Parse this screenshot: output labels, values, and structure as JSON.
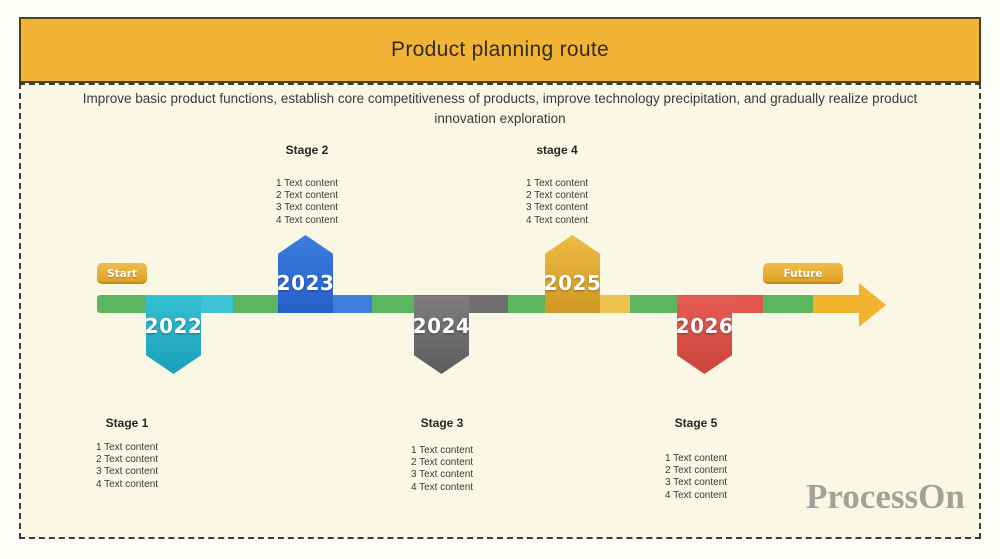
{
  "header": {
    "title": "Product planning route"
  },
  "subtitle": "Improve basic product functions, establish core competitiveness of products, improve technology precipitation, and gradually realize product innovation exploration",
  "timeline": {
    "start_label": "Start",
    "future_label": "Future",
    "bar_color": "#5CB660",
    "arrow_color": "#F2B32F",
    "milestones": [
      {
        "year": "2022",
        "color": "#28B2C8",
        "position": "below"
      },
      {
        "year": "2023",
        "color": "#2D6FD2",
        "position": "above"
      },
      {
        "year": "2024",
        "color": "#6E6E6E",
        "position": "below"
      },
      {
        "year": "2025",
        "color": "#E0A82F",
        "position": "above"
      },
      {
        "year": "2026",
        "color": "#D94F46",
        "position": "below"
      }
    ]
  },
  "stages": [
    {
      "name": "Stage 1",
      "items": [
        "1 Text content",
        "2 Text content",
        "3 Text content",
        "4 Text content"
      ]
    },
    {
      "name": "Stage 2",
      "items": [
        "1 Text content",
        "2 Text content",
        "3 Text content",
        "4 Text content"
      ]
    },
    {
      "name": "Stage 3",
      "items": [
        "1 Text content",
        "2 Text content",
        "3 Text content",
        "4 Text content"
      ]
    },
    {
      "name": "stage 4",
      "items": [
        "1 Text content",
        "2 Text content",
        "3 Text content",
        "4 Text content"
      ]
    },
    {
      "name": "Stage 5",
      "items": [
        "1 Text content",
        "2 Text content",
        "3 Text content",
        "4 Text content"
      ]
    }
  ],
  "watermark": "ProcessOn",
  "colors": {
    "banner": "#F2B436",
    "canvas_background": "#FAF8E4",
    "border_dashed": "#3C3C3C"
  }
}
